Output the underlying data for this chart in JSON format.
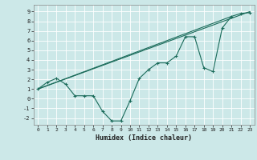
{
  "xlabel": "Humidex (Indice chaleur)",
  "bg_color": "#cce8e8",
  "grid_color": "#ffffff",
  "line_color": "#1a6b5a",
  "xlim": [
    -0.5,
    23.5
  ],
  "ylim": [
    -2.7,
    9.7
  ],
  "xticks": [
    0,
    1,
    2,
    3,
    4,
    5,
    6,
    7,
    8,
    9,
    10,
    11,
    12,
    13,
    14,
    15,
    16,
    17,
    18,
    19,
    20,
    21,
    22,
    23
  ],
  "yticks": [
    -2,
    -1,
    0,
    1,
    2,
    3,
    4,
    5,
    6,
    7,
    8,
    9
  ],
  "curve1_x": [
    0,
    1,
    2,
    3,
    4,
    5,
    6,
    7,
    8,
    9,
    10,
    11,
    12,
    13,
    14,
    15,
    16,
    17,
    18,
    19,
    20,
    21,
    22,
    23
  ],
  "curve1_y": [
    1.0,
    1.7,
    2.1,
    1.5,
    0.3,
    0.3,
    0.3,
    -1.3,
    -2.3,
    -2.3,
    -0.2,
    2.1,
    3.0,
    3.7,
    3.7,
    4.4,
    6.4,
    6.4,
    3.2,
    2.8,
    7.3,
    8.5,
    8.8,
    8.9
  ],
  "curve2_x": [
    0,
    23
  ],
  "curve2_y": [
    1.0,
    9.0
  ],
  "curve3_x": [
    0,
    21
  ],
  "curve3_y": [
    1.0,
    8.5
  ]
}
